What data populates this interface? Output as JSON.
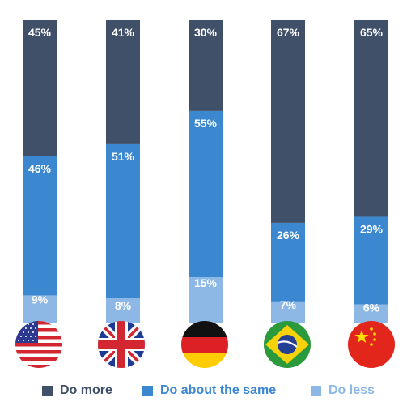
{
  "chart_data": {
    "type": "bar",
    "stacked": true,
    "orientation": "vertical",
    "categories": [
      "United States",
      "United Kingdom",
      "Germany",
      "Brazil",
      "China"
    ],
    "category_icons": [
      "us-flag-icon",
      "uk-flag-icon",
      "germany-flag-icon",
      "brazil-flag-icon",
      "china-flag-icon"
    ],
    "series": [
      {
        "name": "Do less",
        "color": "#8db8e6",
        "values": [
          9,
          8,
          15,
          7,
          6
        ],
        "labels": [
          "9%",
          "8%",
          "15%",
          "7%",
          "6%"
        ]
      },
      {
        "name": "Do about the same",
        "color": "#3b87d0",
        "values": [
          46,
          51,
          55,
          26,
          29
        ],
        "labels": [
          "46%",
          "51%",
          "55%",
          "26%",
          "29%"
        ]
      },
      {
        "name": "Do more",
        "color": "#3f5068",
        "values": [
          45,
          41,
          30,
          67,
          65
        ],
        "labels": [
          "45%",
          "41%",
          "30%",
          "67%",
          "65%"
        ]
      }
    ],
    "ylim": [
      0,
      100
    ],
    "grid": false,
    "legend_position": "bottom"
  },
  "legend": [
    {
      "label": "Do more",
      "color": "#3f5068",
      "text_color": "#3f5068"
    },
    {
      "label": "Do about the same",
      "color": "#3b87d0",
      "text_color": "#3b87d0"
    },
    {
      "label": "Do less",
      "color": "#8db8e6",
      "text_color": "#8db8e6"
    }
  ]
}
